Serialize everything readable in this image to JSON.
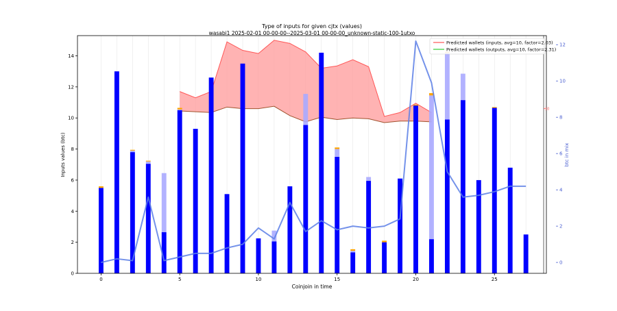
{
  "chart_data": {
    "type": "bar",
    "title": "Type of inputs for given cjtx (values)",
    "subtitle": "wasabi1 2025-02-01 00-00-00--2025-03-01 00-00-00_unknown-static-100-1utxo",
    "xlabel": "Coinjoin in time",
    "ylabel": "Inputs values (btc)",
    "y2label": "btc in mix",
    "x_ticks": [
      "0",
      "5",
      "10",
      "15",
      "20",
      "25"
    ],
    "y_ticks": [
      "0",
      "2",
      "4",
      "6",
      "8",
      "10",
      "12",
      "14"
    ],
    "y2_ticks": [
      "0",
      "2",
      "4",
      "6",
      "8",
      "10",
      "12"
    ],
    "ylim": [
      0,
      15.3
    ],
    "y2lim": [
      -0.6,
      12.5
    ],
    "xlim": [
      -1.5,
      28.3
    ],
    "x": [
      0,
      1,
      2,
      3,
      4,
      5,
      6,
      7,
      8,
      9,
      10,
      11,
      12,
      13,
      14,
      15,
      16,
      17,
      18,
      19,
      20,
      21,
      22,
      23,
      24,
      25,
      26,
      27
    ],
    "series": [
      {
        "name": "",
        "color": "#0000ff",
        "values": [
          5.5,
          13.0,
          7.8,
          7.05,
          2.65,
          10.5,
          9.3,
          12.6,
          5.1,
          13.5,
          2.25,
          2.05,
          5.6,
          9.55,
          14.2,
          7.5,
          1.35,
          5.95,
          2.0,
          6.1,
          10.8,
          2.2,
          9.9,
          11.15,
          6.0,
          10.65,
          6.8,
          2.5
        ]
      },
      {
        "name": "",
        "color": "#aaaaff",
        "values": [
          0,
          0,
          0.1,
          0.15,
          3.8,
          0.05,
          0,
          0,
          0,
          0,
          0,
          0.7,
          0,
          2.0,
          0,
          0.5,
          0.1,
          0.25,
          0,
          0,
          0,
          9.25,
          4.3,
          1.7,
          0,
          0,
          0,
          0
        ]
      },
      {
        "name": "",
        "color": "#ffa500",
        "values": [
          0.1,
          0,
          0.05,
          0.05,
          0,
          0.1,
          0,
          0,
          0,
          0,
          0,
          0,
          0,
          0,
          0,
          0.1,
          0.1,
          0,
          0.1,
          0,
          0.05,
          0.15,
          0.05,
          0,
          0,
          0.05,
          0,
          0
        ]
      }
    ],
    "band": {
      "x": [
        5,
        6,
        7,
        8,
        9,
        10,
        11,
        12,
        13,
        14,
        15,
        16,
        17,
        18,
        19,
        20,
        21
      ],
      "upper": [
        11.7,
        11.3,
        11.7,
        14.9,
        14.35,
        14.15,
        15.0,
        14.8,
        14.25,
        13.2,
        13.35,
        13.75,
        13.3,
        10.1,
        10.35,
        10.95,
        10.35
      ],
      "lower": [
        10.45,
        10.4,
        10.35,
        10.7,
        10.6,
        10.6,
        10.75,
        10.15,
        9.75,
        10.05,
        9.9,
        10.0,
        9.95,
        9.7,
        9.8,
        9.8,
        9.75
      ],
      "fill_color": "#ff9999",
      "upper_color": "#ff5555",
      "lower_color": "#a0522d"
    },
    "btc_in_mix": {
      "color": "#5c7fe6",
      "x": [
        0,
        1,
        2,
        3,
        4,
        5,
        6,
        7,
        8,
        9,
        10,
        11,
        12,
        13,
        14,
        15,
        16,
        17,
        18,
        19,
        20,
        21,
        22,
        23,
        24,
        25,
        26,
        27
      ],
      "values": [
        0.0,
        0.2,
        0.1,
        3.6,
        0.1,
        0.3,
        0.5,
        0.5,
        0.8,
        1.0,
        1.9,
        1.3,
        3.3,
        1.7,
        2.3,
        1.8,
        2.0,
        1.9,
        2.0,
        2.4,
        12.2,
        9.9,
        5.0,
        3.6,
        3.7,
        3.9,
        4.2,
        4.2
      ]
    },
    "legend": {
      "placement": "top-right",
      "entries": [
        {
          "label": "Predicted wallets (inputs, avg=10, factor=2.03)",
          "color": "#ff5555"
        },
        {
          "label": "Predicted wallets (outputs, avg=10, factor=2.31)",
          "color": "#33cc33"
        }
      ]
    },
    "right_marker_label": "10",
    "grid": "vertical"
  }
}
